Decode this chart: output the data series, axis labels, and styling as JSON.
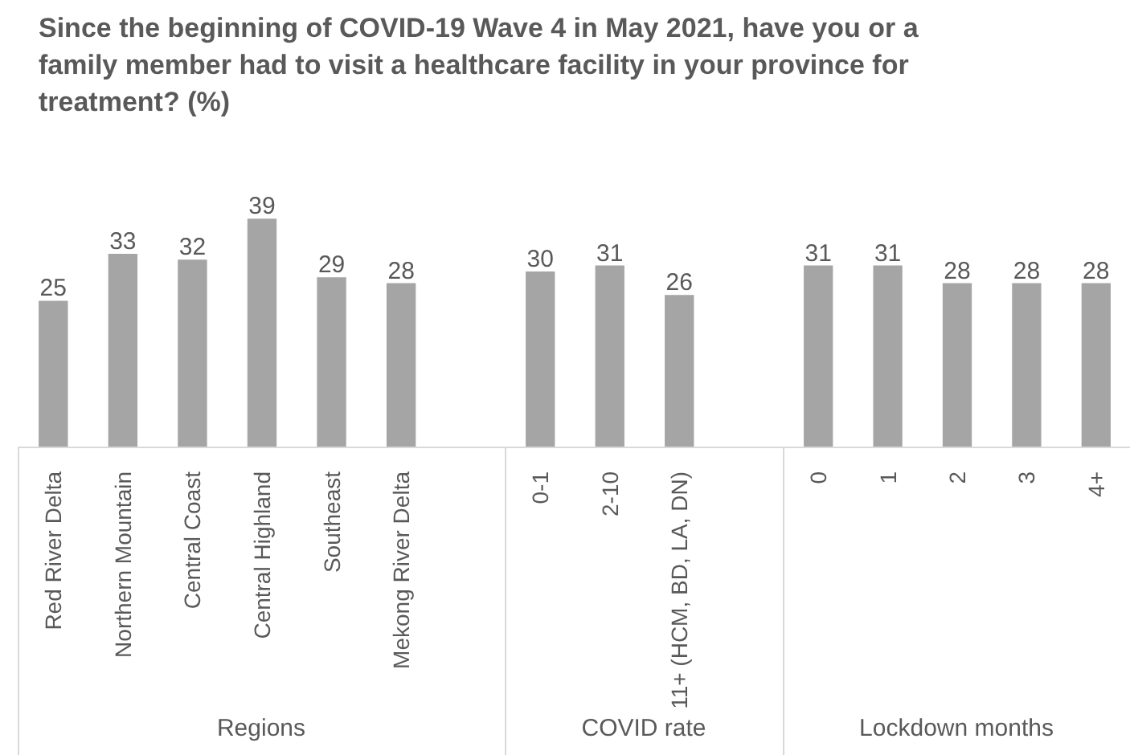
{
  "chart_data": [
    {
      "type": "bar",
      "title": "Since the beginning of COVID-19 Wave 4 in May 2021, have you or a family member had to visit a healthcare facility in your province for treatment? (%)",
      "xlabel": "Regions",
      "categories": [
        "Red River Delta",
        "Northern Mountain",
        "Central Coast",
        "Central Highland",
        "Southeast",
        "Mekong River Delta"
      ],
      "values": [
        25,
        33,
        32,
        39,
        29,
        28
      ],
      "color": "#a5a5a5",
      "tick_labels": "x",
      "data_labels": true
    },
    {
      "type": "bar",
      "xlabel": "COVID rate",
      "categories": [
        "0-1",
        "2-10",
        "11+ (HCM, BD, LA, DN)"
      ],
      "values": [
        30,
        31,
        26
      ],
      "color": "#a5a5a5",
      "tick_labels": "x",
      "data_labels": true
    },
    {
      "type": "bar",
      "xlabel": "Lockdown months",
      "categories": [
        "0",
        "1",
        "2",
        "3",
        "4+"
      ],
      "values": [
        31,
        31,
        28,
        28,
        28
      ],
      "color": "#a5a5a5",
      "tick_labels": "x",
      "data_labels": true
    }
  ]
}
